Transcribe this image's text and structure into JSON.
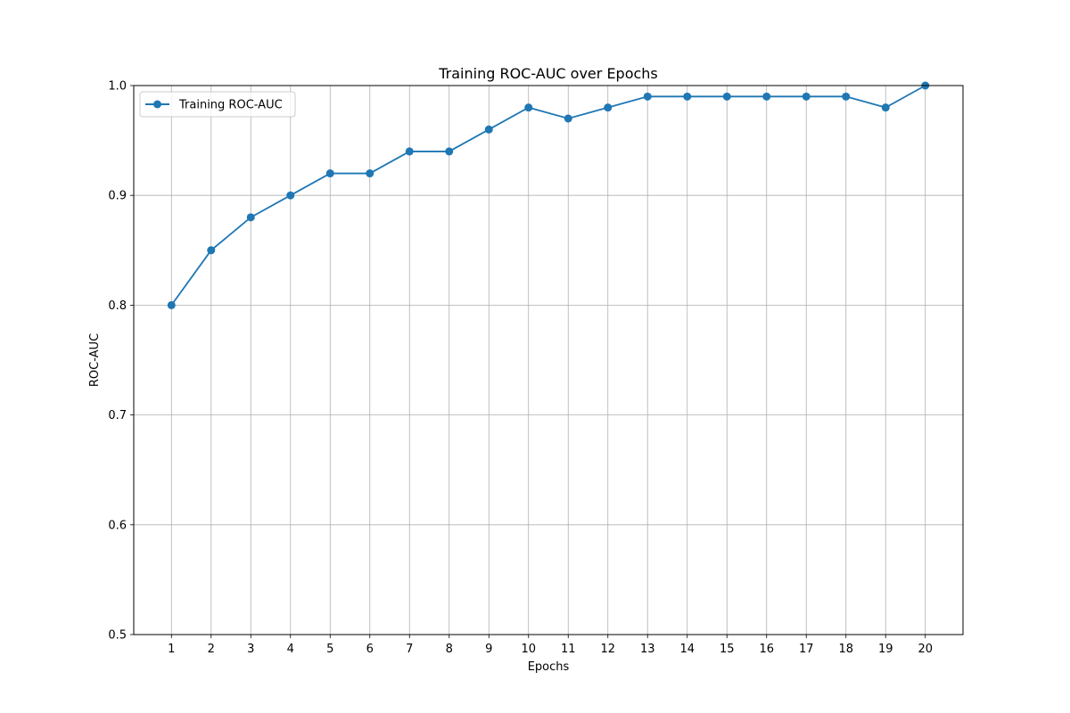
{
  "chart_data": {
    "type": "line",
    "title": "Training ROC-AUC over Epochs",
    "xlabel": "Epochs",
    "ylabel": "ROC-AUC",
    "x": [
      1,
      2,
      3,
      4,
      5,
      6,
      7,
      8,
      9,
      10,
      11,
      12,
      13,
      14,
      15,
      16,
      17,
      18,
      19,
      20
    ],
    "xticks": [
      "1",
      "2",
      "3",
      "4",
      "5",
      "6",
      "7",
      "8",
      "9",
      "10",
      "11",
      "12",
      "13",
      "14",
      "15",
      "16",
      "17",
      "18",
      "19",
      "20"
    ],
    "xlim": [
      0.05,
      20.95
    ],
    "ylim": [
      0.5,
      1.0
    ],
    "yticks": [
      "0.5",
      "0.6",
      "0.7",
      "0.8",
      "0.9",
      "1.0"
    ],
    "grid": true,
    "legend_position": "top-left",
    "series": [
      {
        "name": "Training ROC-AUC",
        "color": "#1f77b4",
        "marker": "circle",
        "values": [
          0.8,
          0.85,
          0.88,
          0.9,
          0.92,
          0.92,
          0.94,
          0.94,
          0.96,
          0.98,
          0.97,
          0.98,
          0.99,
          0.99,
          0.99,
          0.99,
          0.99,
          0.99,
          0.98,
          1.0
        ]
      }
    ]
  }
}
